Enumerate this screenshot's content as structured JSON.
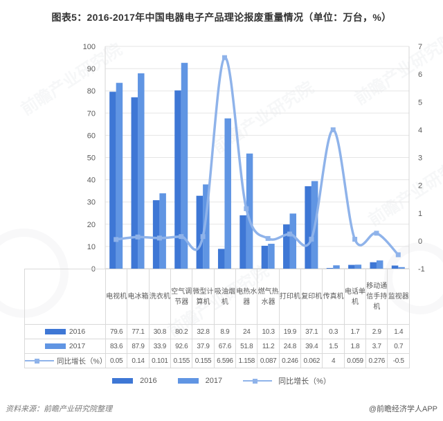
{
  "title": "图表5：2016-2017年中国电器电子产品理论报废重量情况（单位：万台，%）",
  "chart_data": {
    "type": "bar",
    "subtype": "grouped-bars-with-line-overlay",
    "categories": [
      "电视机",
      "电冰箱",
      "洗衣机",
      "空气调节器",
      "微型计算机",
      "吸油烟机",
      "电热水器",
      "燃气热水器",
      "打印机",
      "复印机",
      "传真机",
      "电话单机",
      "移动通信手持机",
      "监视器"
    ],
    "series": [
      {
        "name": "2016",
        "kind": "bar",
        "axis": "left",
        "color": "#3E77D5",
        "values": [
          79.6,
          77.1,
          30.8,
          80.2,
          32.8,
          8.9,
          24,
          10.3,
          19.9,
          37.1,
          0.3,
          1.7,
          2.9,
          1.4
        ]
      },
      {
        "name": "2017",
        "kind": "bar",
        "axis": "left",
        "color": "#6095E3",
        "values": [
          83.6,
          87.9,
          33.9,
          92.6,
          37.9,
          67.6,
          51.8,
          11.2,
          24.8,
          39.4,
          1.5,
          1.8,
          3.7,
          0.7
        ]
      },
      {
        "name": "同比增长（%）",
        "kind": "line",
        "axis": "right",
        "color": "#8FB3EA",
        "values": [
          0.05,
          0.14,
          0.101,
          0.155,
          0.155,
          6.596,
          1.158,
          0.087,
          0.246,
          0.062,
          4,
          0.059,
          0.276,
          -0.5
        ]
      }
    ],
    "left_axis": {
      "min": 0,
      "max": 100,
      "step": 10
    },
    "right_axis": {
      "min": -1,
      "max": 7,
      "step": 1
    },
    "grid": true,
    "legend_position": "bottom",
    "table_shown": true
  },
  "footer": {
    "source": "资料来源：前瞻产业研究院整理",
    "credit": "@前瞻经济学人APP"
  },
  "watermark": {
    "text": "前瞻产业研究院"
  }
}
